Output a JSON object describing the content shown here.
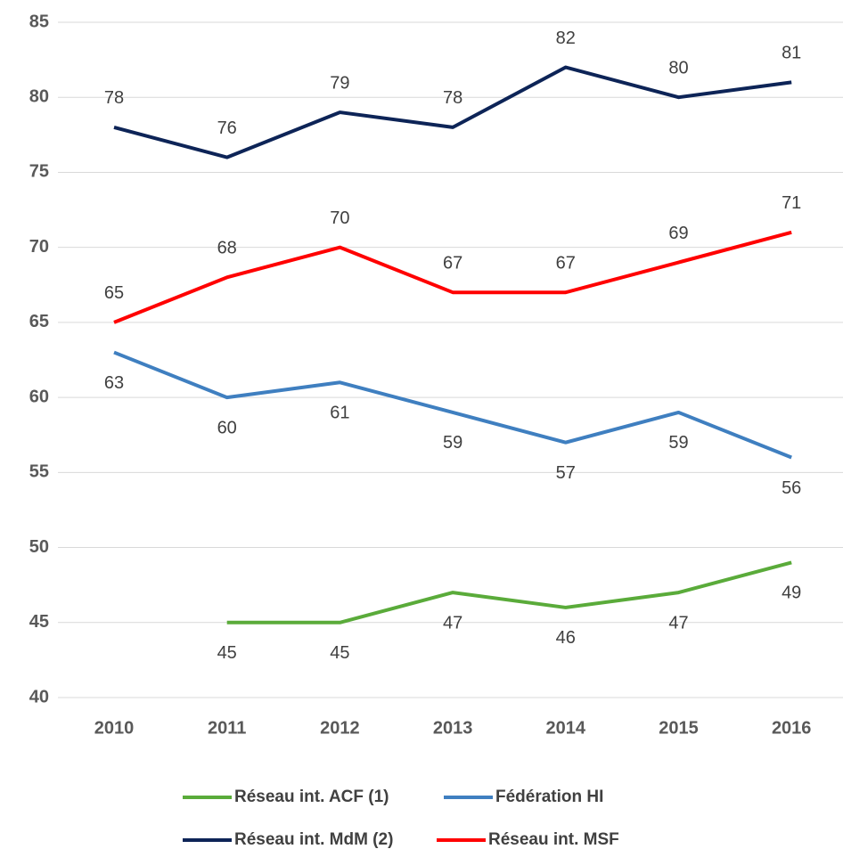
{
  "chart_data": {
    "type": "line",
    "categories": [
      "2010",
      "2011",
      "2012",
      "2013",
      "2014",
      "2015",
      "2016"
    ],
    "series": [
      {
        "name": "Réseau int. ACF (1)",
        "color": "#5aab3a",
        "values": [
          null,
          45,
          45,
          47,
          46,
          47,
          49
        ]
      },
      {
        "name": "Fédération HI",
        "color": "#3f7fc0",
        "values": [
          63,
          60,
          61,
          59,
          57,
          59,
          56
        ]
      },
      {
        "name": "Réseau int. MdM (2)",
        "color": "#0d2457",
        "values": [
          78,
          76,
          79,
          78,
          82,
          80,
          81
        ]
      },
      {
        "name": "Réseau int. MSF",
        "color": "#ff0000",
        "values": [
          65,
          68,
          70,
          67,
          67,
          69,
          71
        ]
      }
    ],
    "ylim": [
      40,
      85
    ],
    "yticks": [
      40,
      45,
      50,
      55,
      60,
      65,
      70,
      75,
      80,
      85
    ],
    "grid": true
  }
}
